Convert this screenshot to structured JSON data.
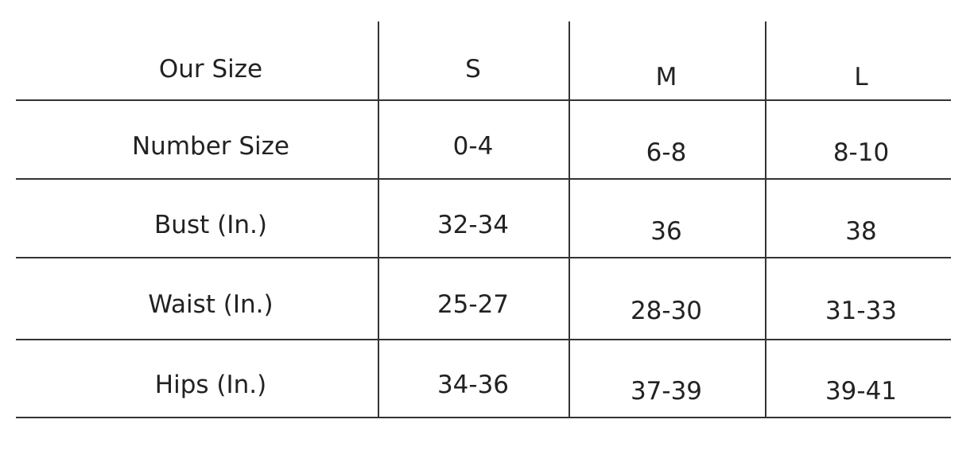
{
  "table": {
    "headers": [
      "Our Size",
      "S",
      "M",
      "L"
    ],
    "rows": [
      [
        "Number Size",
        "0-4",
        "6-8",
        "8-10"
      ],
      [
        "Bust (In.)",
        "32-34",
        "36",
        "38"
      ],
      [
        "Waist (In.)",
        "25-27",
        "28-30",
        "31-33"
      ],
      [
        "Hips (In.)",
        "34-36",
        "37-39",
        "39-41"
      ]
    ]
  }
}
